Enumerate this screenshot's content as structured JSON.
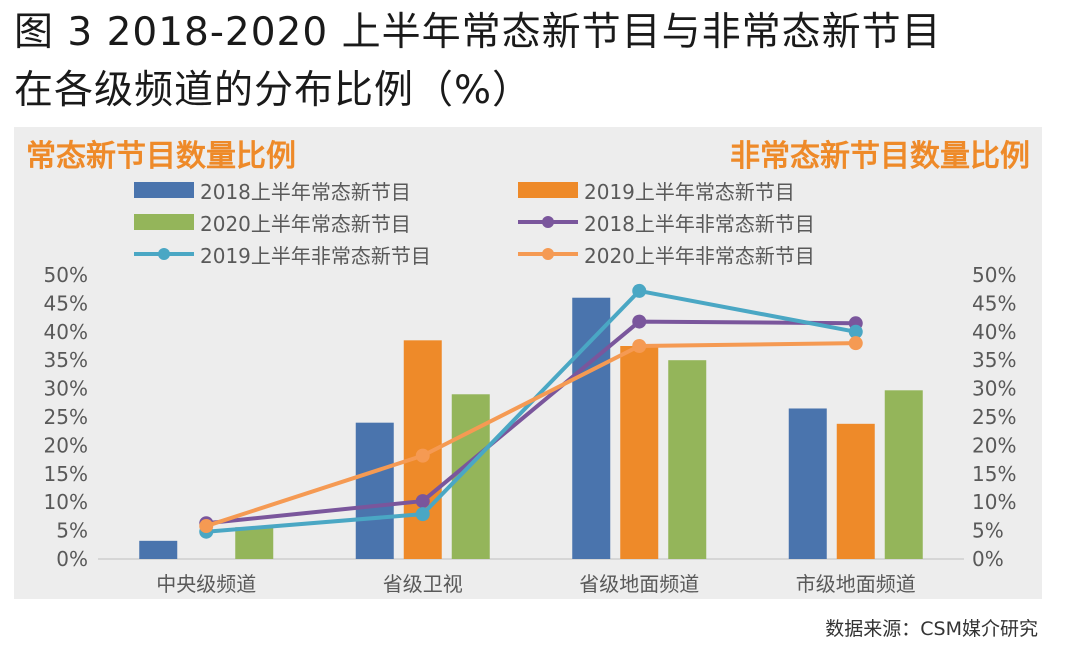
{
  "figure_title_line1": "图 3  2018-2020 上半年常态新节目与非常态新节目",
  "figure_title_line2": "在各级频道的分布比例（%）",
  "source": "数据来源：CSM媒介研究",
  "colors": {
    "blue": "#4a74ad",
    "orange_bar": "#ee8a29",
    "green": "#94b55a",
    "purple": "#7a569c",
    "teal": "#4aa7c4",
    "orange_line": "#f59a53",
    "panel_bg": "#ededed",
    "accent_label": "#ee8a29"
  },
  "chart_data": {
    "type": "bar",
    "left_axis_title": "常态新节目数量比例",
    "right_axis_title": "非常态新节目数量比例",
    "categories": [
      "中央级频道",
      "省级卫视",
      "省级地面频道",
      "市级地面频道"
    ],
    "ylim": [
      0,
      50
    ],
    "yticks": [
      "0%",
      "5%",
      "10%",
      "15%",
      "20%",
      "25%",
      "30%",
      "35%",
      "40%",
      "45%",
      "50%"
    ],
    "y2ticks": [
      "0%",
      "5%",
      "10%",
      "15%",
      "20%",
      "25%",
      "30%",
      "35%",
      "40%",
      "45%",
      "50%"
    ],
    "bar_series": [
      {
        "name": "2018上半年常态新节目",
        "color": "#4a74ad",
        "values": [
          3.2,
          24,
          46,
          26.5
        ]
      },
      {
        "name": "2019上半年常态新节目",
        "color": "#ee8a29",
        "values": [
          0,
          38.5,
          37.5,
          23.8
        ]
      },
      {
        "name": "2020上半年常态新节目",
        "color": "#94b55a",
        "values": [
          5.6,
          29,
          35,
          29.7
        ]
      }
    ],
    "line_series": [
      {
        "name": "2018上半年非常态新节目",
        "color": "#7a569c",
        "values": [
          6.3,
          10.2,
          41.8,
          41.5
        ]
      },
      {
        "name": "2019上半年非常态新节目",
        "color": "#4aa7c4",
        "values": [
          4.8,
          7.9,
          47.2,
          40.0
        ]
      },
      {
        "name": "2020上半年非常态新节目",
        "color": "#f59a53",
        "values": [
          5.8,
          18.2,
          37.5,
          38.0
        ]
      }
    ]
  }
}
